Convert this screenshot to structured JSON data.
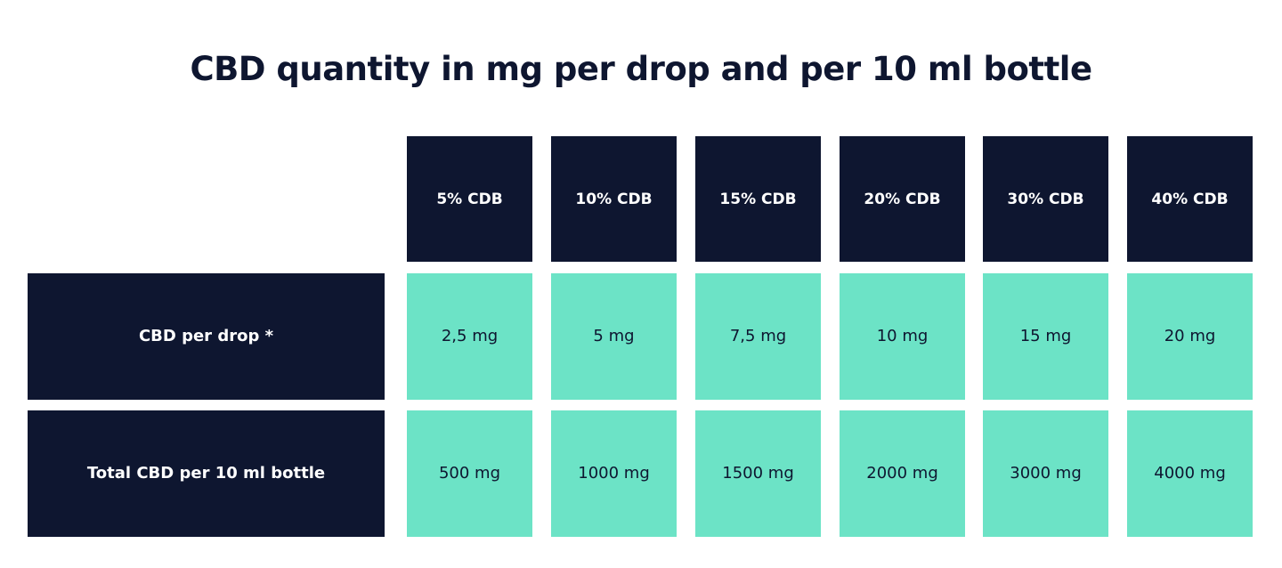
{
  "colors": {
    "dark": "#0e1630",
    "teal": "#6ce3c6",
    "header_text": "#ffffff",
    "value_text": "#0e1630"
  },
  "chart_data": {
    "type": "table",
    "title": "CBD quantity in mg per drop and per 10 ml bottle",
    "columns": [
      "5% CDB",
      "10% CDB",
      "15% CDB",
      "20% CDB",
      "30% CDB",
      "40% CDB"
    ],
    "rows": [
      {
        "label": "CBD per drop *",
        "values": [
          "2,5 mg",
          "5 mg",
          "7,5 mg",
          "10 mg",
          "15 mg",
          "20 mg"
        ]
      },
      {
        "label": "Total CBD per 10 ml bottle",
        "values": [
          "500 mg",
          "1000 mg",
          "1500 mg",
          "2000 mg",
          "3000 mg",
          "4000 mg"
        ]
      }
    ]
  }
}
